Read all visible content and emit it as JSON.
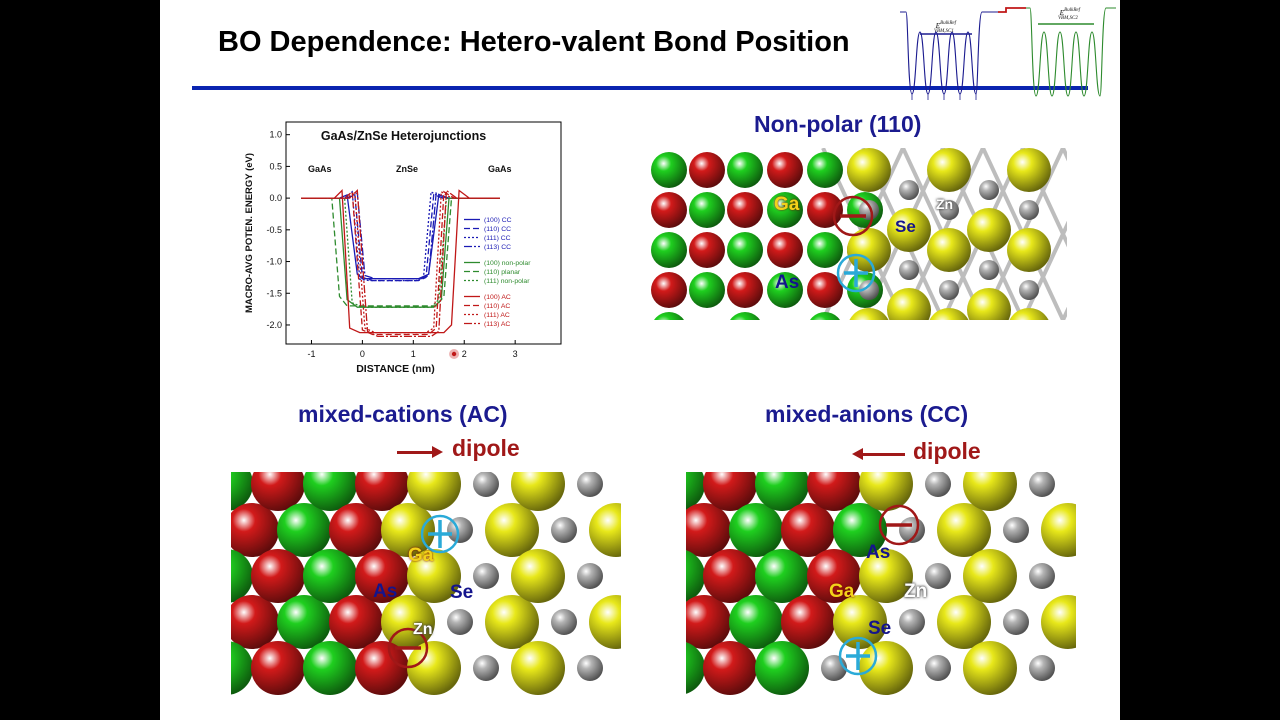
{
  "slide": {
    "title": "BO Dependence: Hetero-valent Bond Position"
  },
  "band_inset": {
    "label_left": "E^{BulkRef}_{VBM,SC1}",
    "label_right": "E^{BulkRef}_{VBM,SC2}",
    "colors": {
      "left": "#1b1b8f",
      "mid": "#c01818",
      "right": "#2e8b2e"
    }
  },
  "panels": {
    "nonpolar": {
      "title": "Non-polar (110)",
      "labels": {
        "ga": "Ga",
        "as": "As",
        "se": "Se",
        "zn": "Zn"
      }
    },
    "ac": {
      "title": "mixed-cations (AC)",
      "dipole": "dipole",
      "arrow": "right",
      "labels": {
        "ga": "Ga",
        "as": "As",
        "se": "Se",
        "zn": "Zn"
      }
    },
    "cc": {
      "title": "mixed-anions (CC)",
      "dipole": "dipole",
      "arrow": "left",
      "labels": {
        "ga": "Ga",
        "as": "As",
        "se": "Se",
        "zn": "Zn"
      }
    }
  },
  "atom_colors": {
    "ga": "#d21a1a",
    "as": "#1fcf1f",
    "se": "#e8e81a",
    "zn": "#b4b4b4",
    "plus": "#2aaad8",
    "minus": "#a01818"
  },
  "chart_data": {
    "type": "line",
    "title": "GaAs/ZnSe Heterojunctions",
    "region_labels": [
      "GaAs",
      "ZnSe",
      "GaAs"
    ],
    "xlabel": "DISTANCE (nm)",
    "ylabel": "MACRO-AVG POTEN. ENERGY (eV)",
    "xlim": [
      -1.5,
      3.9
    ],
    "ylim": [
      -2.3,
      1.2
    ],
    "xticks": [
      -1,
      0,
      1,
      2,
      3
    ],
    "yticks": [
      1.0,
      0.5,
      0.0,
      -0.5,
      -1.0,
      -1.5,
      -2.0
    ],
    "ytick_labels": [
      "1.0",
      "0.5",
      "0.0",
      "-0.5",
      "-1.0",
      "-1.5",
      "-2.0"
    ],
    "grid": false,
    "legend_position": "right",
    "legend_groups": [
      [
        "(100) CC",
        "(110) CC",
        "(111) CC",
        "(113) CC"
      ],
      [
        "(100) non-polar",
        "(110) planar",
        "(111) non-polar"
      ],
      [
        "(100) AC",
        "(110) AC",
        "(111) AC",
        "(113) AC"
      ]
    ],
    "series": [
      {
        "name": "(100) CC",
        "color": "#1a1ab4",
        "dash": "",
        "x": [
          -1.2,
          -0.45,
          -0.3,
          -0.1,
          0.0,
          0.3,
          1.1,
          1.3,
          1.5,
          1.7,
          2.7
        ],
        "y": [
          0,
          0,
          0.05,
          -1.2,
          -1.27,
          -1.27,
          -1.27,
          -1.2,
          0.05,
          0,
          0
        ]
      },
      {
        "name": "(110) CC",
        "color": "#1a1ab4",
        "dash": "6,3",
        "x": [
          -1.2,
          -0.3,
          -0.15,
          0.0,
          0.2,
          1.1,
          1.25,
          1.4,
          1.6,
          2.7
        ],
        "y": [
          0,
          0,
          0.05,
          -1.25,
          -1.3,
          -1.3,
          -1.25,
          0.05,
          0,
          0
        ]
      },
      {
        "name": "(111) CC",
        "color": "#1a1ab4",
        "dash": "2,2",
        "x": [
          -1.2,
          -0.35,
          -0.2,
          -0.05,
          0.15,
          1.05,
          1.2,
          1.35,
          1.55,
          2.7
        ],
        "y": [
          0,
          0,
          0.1,
          -1.28,
          -1.3,
          -1.3,
          -1.25,
          0.1,
          0,
          0
        ]
      },
      {
        "name": "(113) CC",
        "color": "#1a1ab4",
        "dash": "8,2,2,2",
        "x": [
          -1.2,
          -0.3,
          -0.1,
          0.05,
          0.25,
          1.15,
          1.3,
          1.45,
          1.65,
          2.7
        ],
        "y": [
          0,
          0,
          0.08,
          -1.22,
          -1.27,
          -1.27,
          -1.22,
          0.08,
          0,
          0
        ]
      },
      {
        "name": "(100) non-polar",
        "color": "#2e8b2e",
        "dash": "",
        "x": [
          -1.2,
          -0.6,
          -0.45,
          -0.3,
          -0.1,
          1.4,
          1.55,
          1.7,
          1.9,
          2.7
        ],
        "y": [
          0,
          0,
          0.0,
          -1.6,
          -1.72,
          -1.72,
          -1.6,
          0.0,
          0,
          0
        ]
      },
      {
        "name": "(110) planar",
        "color": "#2e8b2e",
        "dash": "6,3",
        "x": [
          -1.2,
          -0.75,
          -0.6,
          -0.45,
          -0.3,
          1.45,
          1.6,
          1.75,
          1.95,
          2.7
        ],
        "y": [
          0,
          0,
          0.0,
          -1.55,
          -1.7,
          -1.7,
          -1.55,
          0.0,
          0,
          0
        ]
      },
      {
        "name": "(111) non-polar",
        "color": "#2e8b2e",
        "dash": "2,2",
        "x": [
          -1.2,
          -0.5,
          -0.35,
          -0.2,
          0.0,
          1.35,
          1.5,
          1.65,
          1.85,
          2.7
        ],
        "y": [
          0,
          0,
          0.0,
          -1.65,
          -1.72,
          -1.72,
          -1.6,
          0.0,
          0,
          0
        ]
      },
      {
        "name": "(100) AC",
        "color": "#c01818",
        "dash": "",
        "x": [
          -1.2,
          -0.55,
          -0.4,
          -0.25,
          -0.05,
          1.6,
          1.75,
          1.9,
          2.1,
          2.7
        ],
        "y": [
          0,
          0,
          0.12,
          -2.05,
          -2.12,
          -2.12,
          -2.0,
          0.12,
          0,
          0
        ]
      },
      {
        "name": "(110) AC",
        "color": "#c01818",
        "dash": "6,3",
        "x": [
          -1.2,
          -0.35,
          -0.2,
          0.0,
          0.2,
          1.3,
          1.45,
          1.6,
          1.8,
          2.7
        ],
        "y": [
          0,
          0,
          0.1,
          -2.08,
          -2.15,
          -2.15,
          -2.05,
          0.1,
          0,
          0
        ]
      },
      {
        "name": "(111) AC",
        "color": "#c01818",
        "dash": "2,2",
        "x": [
          -1.2,
          -0.3,
          -0.15,
          0.05,
          0.25,
          1.25,
          1.4,
          1.55,
          1.75,
          2.7
        ],
        "y": [
          0,
          0,
          0.1,
          -2.05,
          -2.12,
          -2.12,
          -2.05,
          0.1,
          0,
          0
        ]
      },
      {
        "name": "(113) AC",
        "color": "#c01818",
        "dash": "8,2,2,2",
        "x": [
          -1.2,
          -0.25,
          -0.1,
          0.1,
          0.3,
          1.35,
          1.5,
          1.65,
          1.85,
          2.7
        ],
        "y": [
          0,
          0,
          0.12,
          -2.1,
          -2.18,
          -2.18,
          -2.1,
          0.12,
          0,
          0
        ]
      }
    ]
  }
}
